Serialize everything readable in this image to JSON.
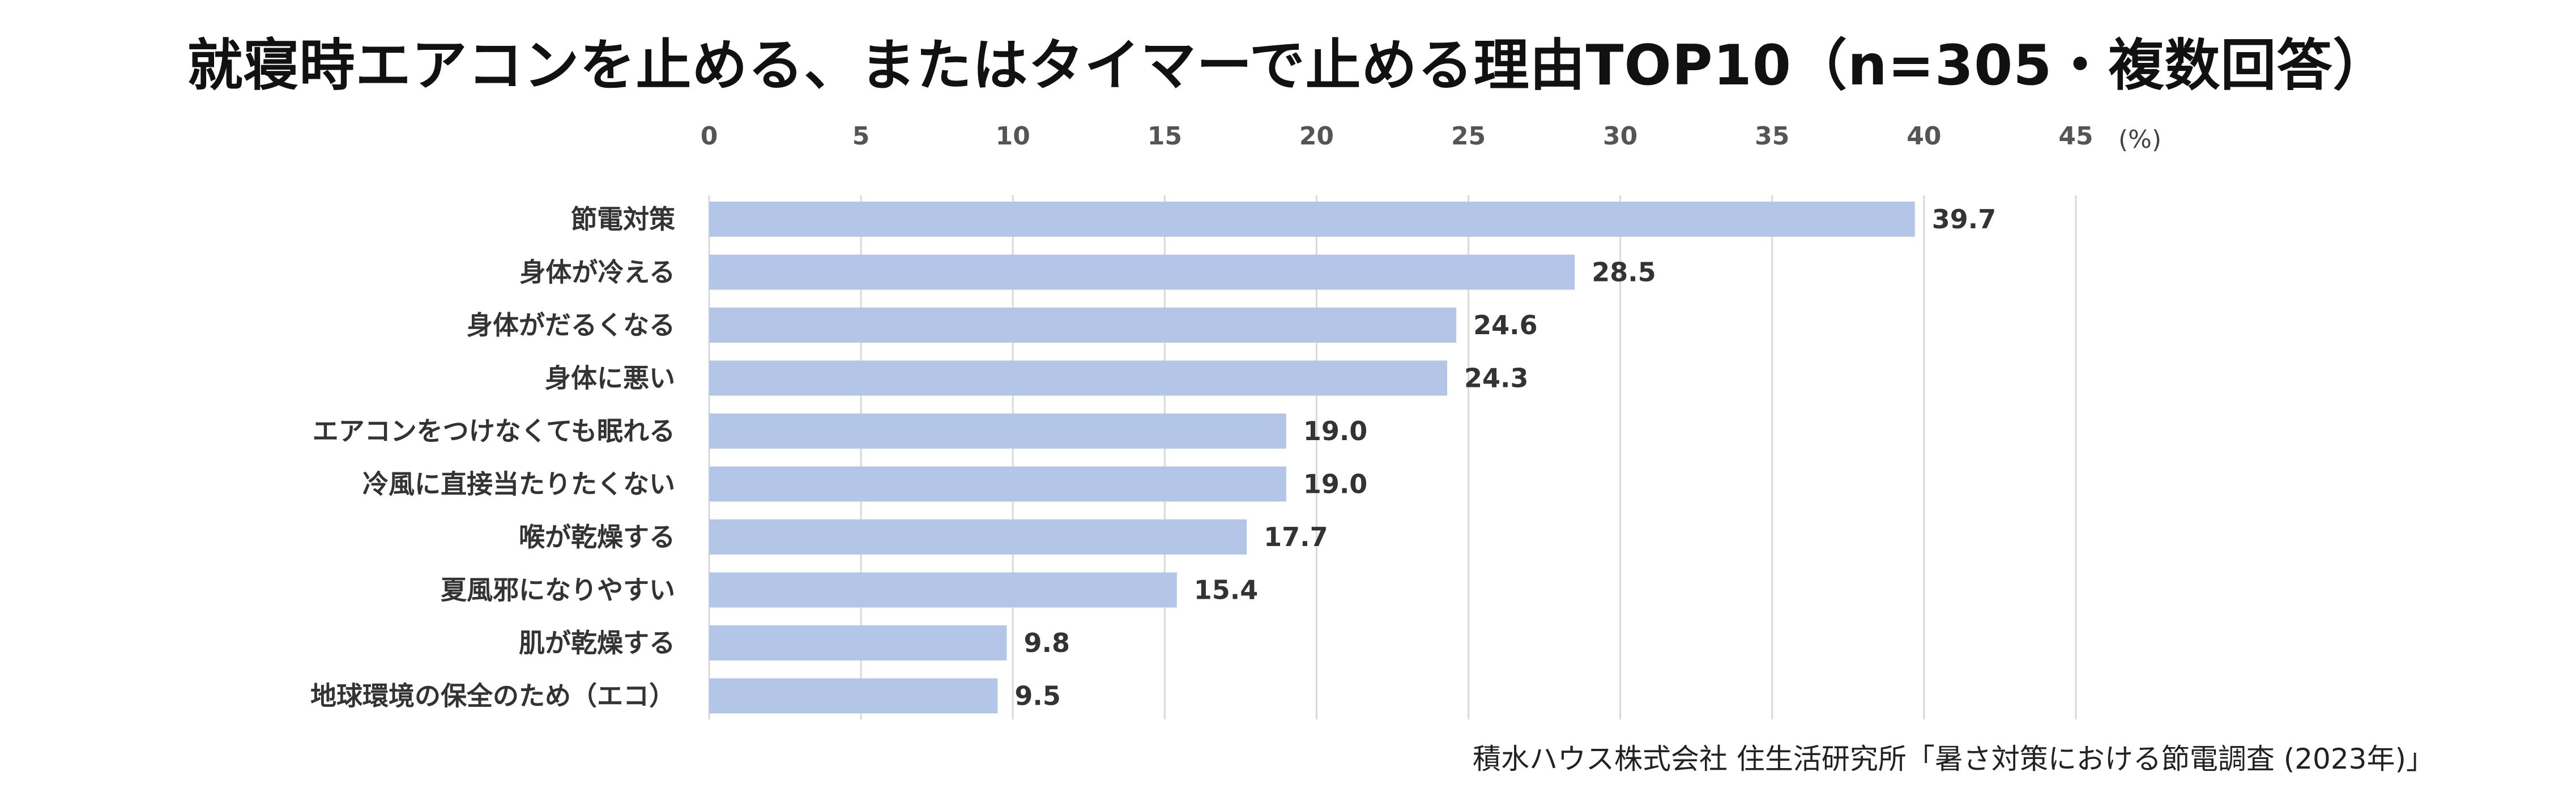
{
  "chart_data": {
    "type": "bar",
    "orientation": "horizontal",
    "title": "就寝時エアコンを止める、またはタイマーで止める理由TOP10（n=305・複数回答）",
    "categories": [
      "節電対策",
      "身体が冷える",
      "身体がだるくなる",
      "身体に悪い",
      "エアコンをつけなくても眠れる",
      "冷風に直接当たりたくない",
      "喉が乾燥する",
      "夏風邪になりやすい",
      "肌が乾燥する",
      "地球環境の保全のため（エコ）"
    ],
    "values": [
      39.7,
      28.5,
      24.6,
      24.3,
      19.0,
      19.0,
      17.7,
      15.4,
      9.8,
      9.5
    ],
    "value_labels": [
      "39.7",
      "28.5",
      "24.6",
      "24.3",
      "19.0",
      "19.0",
      "17.7",
      "15.4",
      "9.8",
      "9.5"
    ],
    "xlim": [
      0,
      45
    ],
    "xticks": [
      "0",
      "5",
      "10",
      "15",
      "20",
      "25",
      "30",
      "35",
      "40",
      "45"
    ],
    "unit": "(%)",
    "xlabel": "",
    "ylabel": "",
    "grid": true,
    "legend": "none",
    "bar_color": "#b4c6e7",
    "source": "積水ハウス株式会社 住生活研究所「暑さ対策における節電調査 (2023年)」"
  }
}
